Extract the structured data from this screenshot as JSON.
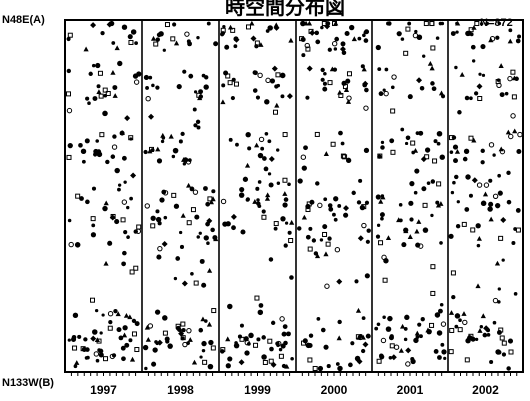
{
  "chart_data": {
    "type": "scatter",
    "title": "時空間分布図",
    "n_label": "N=872",
    "y_top_label": "N48E(A)",
    "y_bottom_label": "N133W(B)",
    "categories": [
      "1997",
      "1998",
      "1999",
      "2000",
      "2001",
      "2002"
    ],
    "ylim": [
      0,
      1
    ],
    "marker_types": [
      "dot",
      "square",
      "triangle",
      "circle",
      "diamond"
    ],
    "density_bands": [
      0.06,
      0.13,
      0.4,
      0.5,
      0.64,
      0.82,
      0.96
    ],
    "point_count": 872,
    "colors": {
      "ink": "#000000",
      "paper": "#ffffff"
    }
  }
}
